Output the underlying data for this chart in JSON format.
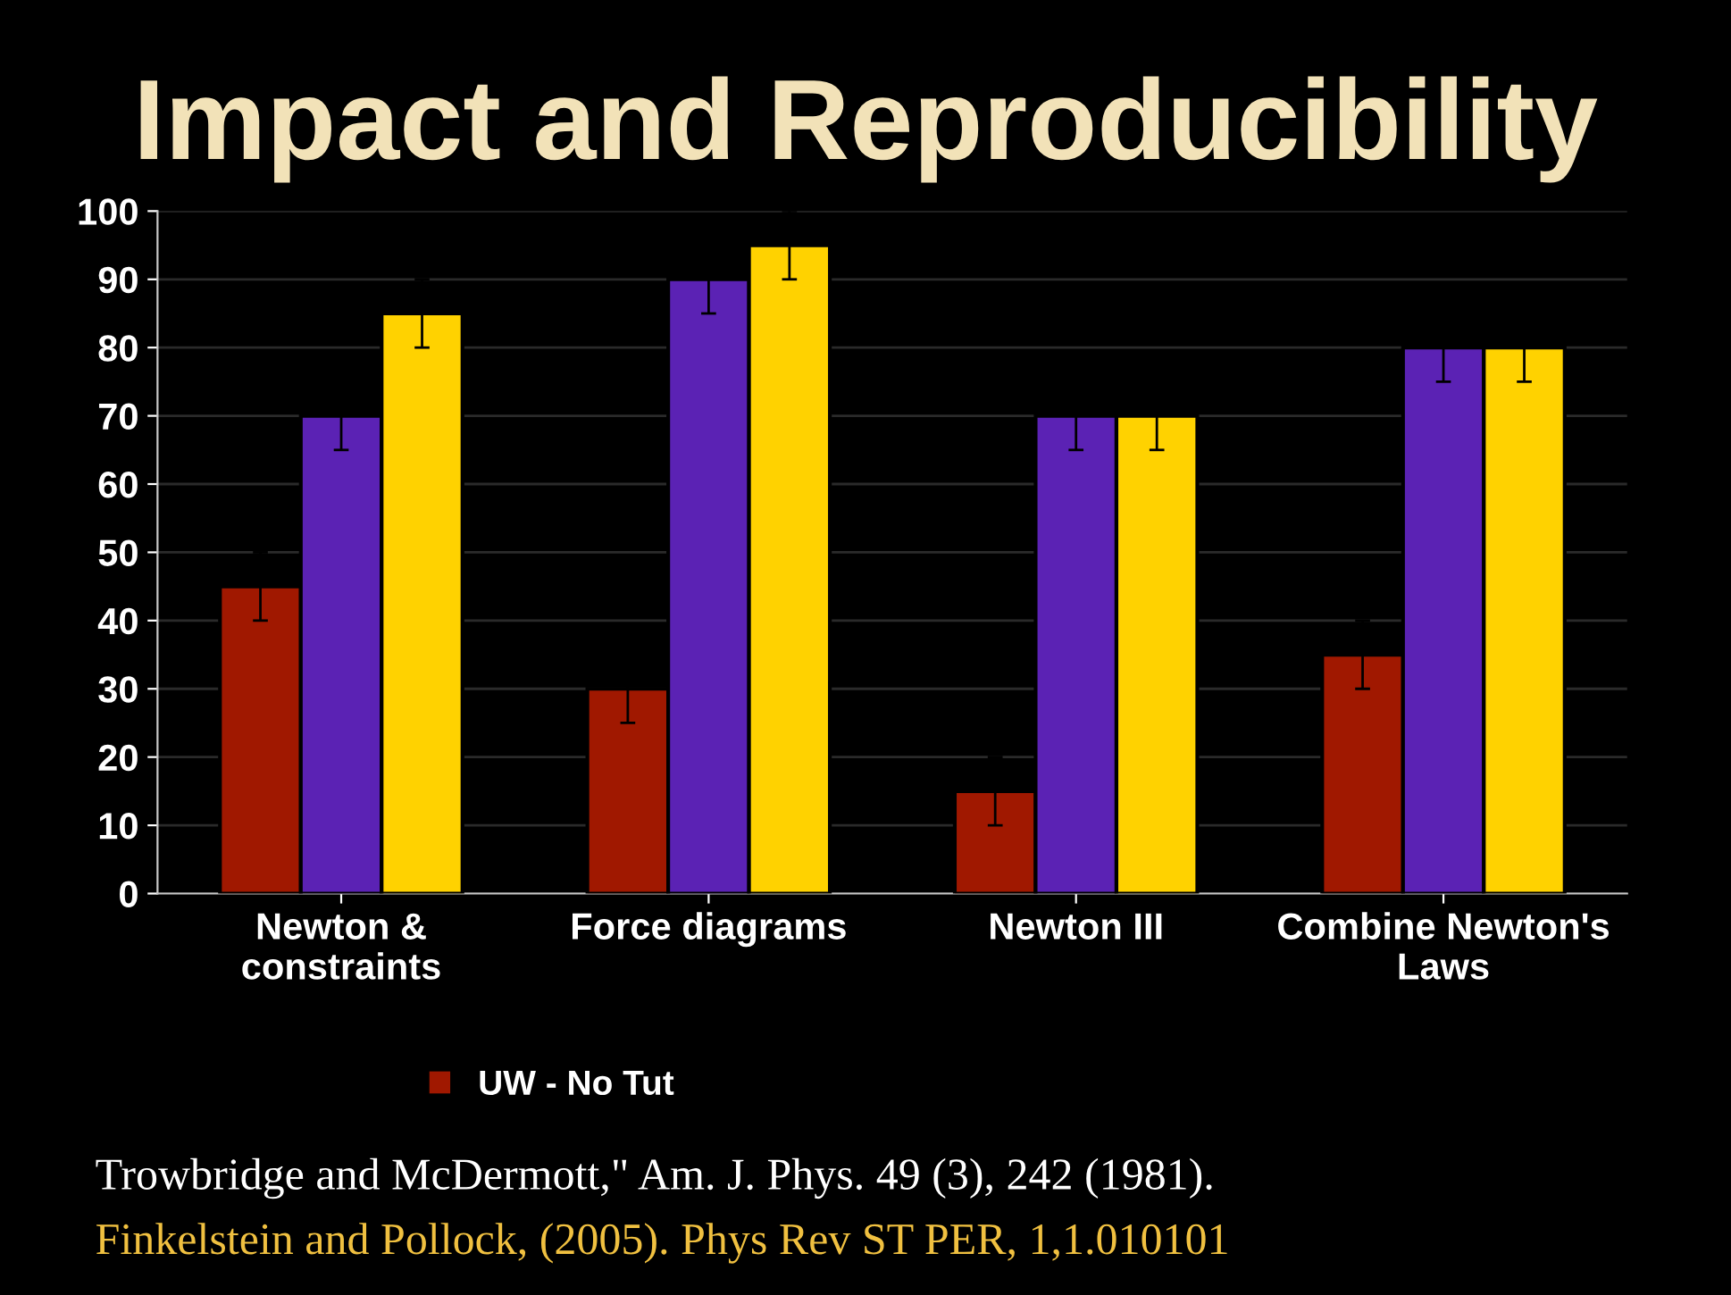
{
  "chart_data": {
    "type": "bar",
    "title": "Impact and Reproducibility",
    "categories": [
      "Newton &\nconstraints",
      "Force diagrams",
      "Newton III",
      "Combine Newton's\nLaws"
    ],
    "series": [
      {
        "name": "UW - No Tut",
        "color": "#a01800",
        "values": [
          45,
          30,
          15,
          35
        ],
        "errors": [
          5,
          5,
          5,
          5
        ]
      },
      {
        "color": "#5b22b4",
        "values": [
          70,
          90,
          70,
          80
        ],
        "errors": [
          5,
          5,
          5,
          5
        ]
      },
      {
        "color": "#ffd200",
        "values": [
          85,
          95,
          70,
          80
        ],
        "errors": [
          5,
          5,
          5,
          5
        ]
      }
    ],
    "ylim": [
      0,
      100
    ],
    "yticks": [
      0,
      10,
      20,
      30,
      40,
      50,
      60,
      70,
      80,
      90,
      100
    ],
    "grid": "y",
    "legend": "bottom",
    "annotations": [
      "Trowbridge and McDermott,\" Am. J. Phys. 49 (3), 242 (1981).",
      "Finkelstein and Pollock, (2005). Phys Rev ST PER, 1,1.010101"
    ]
  }
}
